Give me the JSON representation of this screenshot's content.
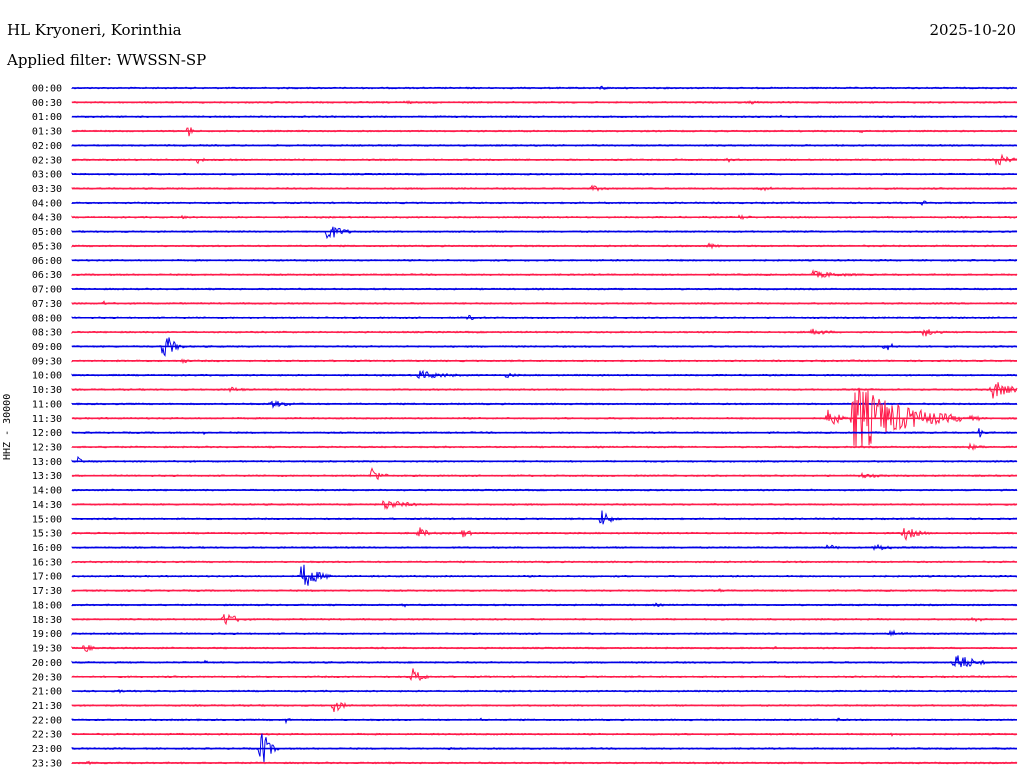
{
  "header": {
    "station": "HL Kryoneri, Korinthia",
    "date": "2025-10-20",
    "filter_label": "Applied filter: WWSSN-SP",
    "channel_label": "HHZ - 30000"
  },
  "colors": {
    "even": "#0000e6",
    "odd": "#ff1a4a"
  },
  "chart_data": {
    "type": "line",
    "title": "HL Kryoneri, Korinthia",
    "ylabel": "HHZ - 30000",
    "x_range": [
      0,
      30
    ],
    "rows": [
      {
        "label": "00:00",
        "events": [
          {
            "t": 16.8,
            "amp": 3,
            "dur": 0.6
          }
        ]
      },
      {
        "label": "00:30",
        "events": [
          {
            "t": 10.5,
            "amp": 2,
            "dur": 1.5
          },
          {
            "t": 21.5,
            "amp": 2,
            "dur": 1.5
          }
        ]
      },
      {
        "label": "01:00",
        "events": [
          {
            "t": 22.5,
            "amp": 3,
            "dur": 0.3
          }
        ]
      },
      {
        "label": "01:30",
        "events": [
          {
            "t": 3.7,
            "amp": 12,
            "dur": 0.2
          },
          {
            "t": 25.0,
            "amp": 3,
            "dur": 0.5
          }
        ]
      },
      {
        "label": "02:00",
        "events": []
      },
      {
        "label": "02:30",
        "events": [
          {
            "t": 4.0,
            "amp": 4,
            "dur": 0.5
          },
          {
            "t": 20.8,
            "amp": 3,
            "dur": 0.5
          },
          {
            "t": 29.3,
            "amp": 8,
            "dur": 1.2
          }
        ]
      },
      {
        "label": "03:00",
        "events": []
      },
      {
        "label": "03:30",
        "events": [
          {
            "t": 16.5,
            "amp": 3,
            "dur": 1.5
          },
          {
            "t": 21.8,
            "amp": 3,
            "dur": 1.5
          }
        ]
      },
      {
        "label": "04:00",
        "events": [
          {
            "t": 27.0,
            "amp": 3,
            "dur": 0.5
          }
        ]
      },
      {
        "label": "04:30",
        "events": [
          {
            "t": 3.5,
            "amp": 3,
            "dur": 0.4
          },
          {
            "t": 21.2,
            "amp": 3,
            "dur": 1.0
          }
        ]
      },
      {
        "label": "05:00",
        "events": [
          {
            "t": 8.1,
            "amp": 10,
            "dur": 1.2
          }
        ]
      },
      {
        "label": "05:30",
        "events": [
          {
            "t": 20.2,
            "amp": 3,
            "dur": 1.2
          }
        ]
      },
      {
        "label": "06:00",
        "events": []
      },
      {
        "label": "06:30",
        "events": [
          {
            "t": 23.5,
            "amp": 4,
            "dur": 3.0
          }
        ]
      },
      {
        "label": "07:00",
        "events": []
      },
      {
        "label": "07:30",
        "events": [
          {
            "t": 1.0,
            "amp": 4,
            "dur": 0.2
          },
          {
            "t": 8.5,
            "amp": 2,
            "dur": 0.4
          }
        ]
      },
      {
        "label": "08:00",
        "events": [
          {
            "t": 12.5,
            "amp": 3,
            "dur": 1.5
          }
        ]
      },
      {
        "label": "08:30",
        "events": [
          {
            "t": 23.5,
            "amp": 4,
            "dur": 1.5
          },
          {
            "t": 27.0,
            "amp": 7,
            "dur": 1.0
          }
        ]
      },
      {
        "label": "09:00",
        "events": [
          {
            "t": 2.9,
            "amp": 18,
            "dur": 0.8
          },
          {
            "t": 25.8,
            "amp": 6,
            "dur": 0.8
          }
        ]
      },
      {
        "label": "09:30",
        "events": [
          {
            "t": 3.5,
            "amp": 3,
            "dur": 0.6
          }
        ]
      },
      {
        "label": "10:00",
        "events": [
          {
            "t": 11.0,
            "amp": 5,
            "dur": 2.5
          },
          {
            "t": 13.8,
            "amp": 3,
            "dur": 1.0
          }
        ]
      },
      {
        "label": "10:30",
        "events": [
          {
            "t": 5.0,
            "amp": 3,
            "dur": 1.5
          },
          {
            "t": 29.2,
            "amp": 11,
            "dur": 1.5
          }
        ]
      },
      {
        "label": "11:00",
        "events": [
          {
            "t": 6.3,
            "amp": 4,
            "dur": 2.0
          }
        ]
      },
      {
        "label": "11:30",
        "events": [
          {
            "t": 24.0,
            "amp": 14,
            "dur": 0.8
          },
          {
            "t": 24.8,
            "amp": 40,
            "dur": 4.0
          }
        ]
      },
      {
        "label": "12:00",
        "events": [
          {
            "t": 4.2,
            "amp": 3,
            "dur": 0.4
          },
          {
            "t": 28.8,
            "amp": 6,
            "dur": 0.5
          }
        ]
      },
      {
        "label": "12:30",
        "events": [
          {
            "t": 28.5,
            "amp": 3,
            "dur": 1.5
          }
        ]
      },
      {
        "label": "13:00",
        "events": [
          {
            "t": 0.2,
            "amp": 5,
            "dur": 0.4
          }
        ]
      },
      {
        "label": "13:30",
        "events": [
          {
            "t": 9.5,
            "amp": 10,
            "dur": 0.8
          },
          {
            "t": 25.0,
            "amp": 3,
            "dur": 2.0
          }
        ]
      },
      {
        "label": "14:00",
        "events": []
      },
      {
        "label": "14:30",
        "events": [
          {
            "t": 9.9,
            "amp": 6,
            "dur": 2.0
          }
        ]
      },
      {
        "label": "15:00",
        "events": [
          {
            "t": 16.8,
            "amp": 10,
            "dur": 0.8
          }
        ]
      },
      {
        "label": "15:30",
        "events": [
          {
            "t": 11.0,
            "amp": 7,
            "dur": 0.8
          },
          {
            "t": 12.4,
            "amp": 5,
            "dur": 0.8
          },
          {
            "t": 26.4,
            "amp": 8,
            "dur": 1.2
          }
        ]
      },
      {
        "label": "16:00",
        "events": [
          {
            "t": 24.0,
            "amp": 4,
            "dur": 0.8
          },
          {
            "t": 25.5,
            "amp": 4,
            "dur": 1.5
          }
        ]
      },
      {
        "label": "16:30",
        "events": []
      },
      {
        "label": "17:00",
        "events": [
          {
            "t": 7.3,
            "amp": 16,
            "dur": 1.2
          }
        ]
      },
      {
        "label": "17:30",
        "events": [
          {
            "t": 20.5,
            "amp": 2,
            "dur": 1.0
          }
        ]
      },
      {
        "label": "18:00",
        "events": [
          {
            "t": 10.5,
            "amp": 3,
            "dur": 0.4
          },
          {
            "t": 18.5,
            "amp": 2,
            "dur": 1.0
          }
        ]
      },
      {
        "label": "18:30",
        "events": [
          {
            "t": 4.8,
            "amp": 8,
            "dur": 1.2
          },
          {
            "t": 28.6,
            "amp": 4,
            "dur": 0.8
          }
        ]
      },
      {
        "label": "19:00",
        "events": [
          {
            "t": 26.0,
            "amp": 4,
            "dur": 1.2
          }
        ]
      },
      {
        "label": "19:30",
        "events": [
          {
            "t": 0.4,
            "amp": 7,
            "dur": 0.5
          },
          {
            "t": 22.3,
            "amp": 2,
            "dur": 0.5
          }
        ]
      },
      {
        "label": "20:00",
        "events": [
          {
            "t": 4.2,
            "amp": 3,
            "dur": 0.4
          },
          {
            "t": 28.0,
            "amp": 12,
            "dur": 1.5
          }
        ]
      },
      {
        "label": "20:30",
        "events": [
          {
            "t": 10.8,
            "amp": 10,
            "dur": 0.8
          }
        ]
      },
      {
        "label": "21:00",
        "events": [
          {
            "t": 1.5,
            "amp": 3,
            "dur": 0.3
          }
        ]
      },
      {
        "label": "21:30",
        "events": [
          {
            "t": 8.3,
            "amp": 8,
            "dur": 0.8
          }
        ]
      },
      {
        "label": "22:00",
        "events": [
          {
            "t": 6.8,
            "amp": 4,
            "dur": 0.3
          },
          {
            "t": 13.0,
            "amp": 2,
            "dur": 0.3
          },
          {
            "t": 24.3,
            "amp": 3,
            "dur": 0.3
          }
        ]
      },
      {
        "label": "22:30",
        "events": [
          {
            "t": 26.0,
            "amp": 2,
            "dur": 1.0
          }
        ]
      },
      {
        "label": "23:00",
        "events": [
          {
            "t": 6.0,
            "amp": 26,
            "dur": 0.6
          },
          {
            "t": 12.0,
            "amp": 2,
            "dur": 0.4
          }
        ]
      },
      {
        "label": "23:30",
        "events": [
          {
            "t": 0.5,
            "amp": 2,
            "dur": 0.6
          }
        ]
      }
    ]
  }
}
